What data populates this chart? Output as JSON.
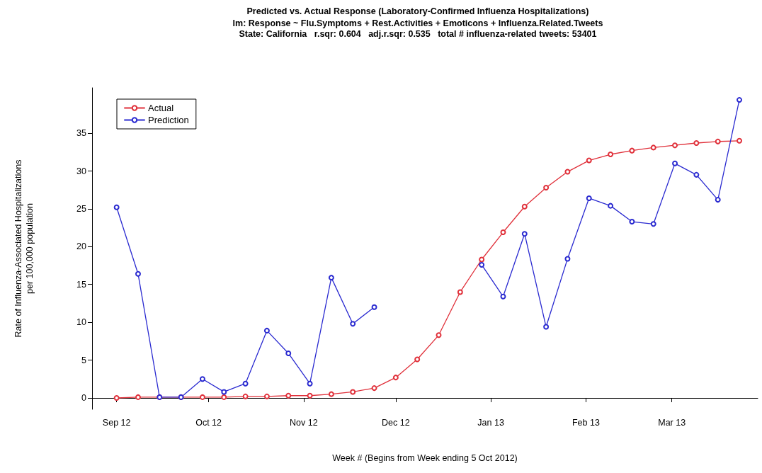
{
  "chart_data": {
    "type": "line",
    "title": "Predicted vs. Actual Response (Laboratory-Confirmed Influenza Hospitalizations)",
    "subtitle": "lm: Response ~ Flu.Symptoms + Rest.Activities + Emoticons + Influenza.Related.Tweets\nState: California   r.sqr: 0.604   adj.r.sqr: 0.535   total # influenza-related tweets: 53401",
    "xlabel": "Week # (Begins from Week ending 5 Oct 2012)",
    "ylabel": "Rate of Influenza-Associated Hospitalizations\nper 100,000 population",
    "x": [
      "2012-09-01",
      "2012-09-08",
      "2012-09-15",
      "2012-09-22",
      "2012-09-29",
      "2012-10-06",
      "2012-10-13",
      "2012-10-20",
      "2012-10-27",
      "2012-11-03",
      "2012-11-10",
      "2012-11-17",
      "2012-11-24",
      "2012-12-01",
      "2012-12-08",
      "2012-12-15",
      "2012-12-22",
      "2012-12-29",
      "2013-01-05",
      "2013-01-12",
      "2013-01-19",
      "2013-01-26",
      "2013-02-02",
      "2013-02-09",
      "2013-02-16",
      "2013-02-23",
      "2013-03-02",
      "2013-03-09",
      "2013-03-16",
      "2013-03-23"
    ],
    "series": [
      {
        "name": "Actual",
        "color": "#e0303a",
        "values": [
          0,
          0.1,
          0.1,
          0.1,
          0.1,
          0.1,
          0.2,
          0.2,
          0.3,
          0.3,
          0.5,
          0.8,
          1.3,
          2.7,
          5.1,
          8.3,
          14.0,
          18.3,
          21.9,
          25.3,
          27.8,
          29.9,
          31.4,
          32.2,
          32.7,
          33.1,
          33.4,
          33.7,
          33.9,
          34.0
        ]
      },
      {
        "name": "Prediction",
        "color": "#2a2ad0",
        "values": [
          25.2,
          16.4,
          0.1,
          0.1,
          2.5,
          0.8,
          1.9,
          8.9,
          5.9,
          1.9,
          15.9,
          9.8,
          12.0,
          null,
          null,
          null,
          null,
          17.6,
          13.4,
          21.7,
          9.4,
          18.4,
          26.4,
          25.4,
          23.3,
          23.0,
          31.0,
          29.5,
          26.2,
          39.4
        ]
      }
    ],
    "xlim": [
      "2012-08-24",
      "2013-03-29"
    ],
    "xticks": [
      {
        "value": "2012-09-01",
        "label": "Sep 12"
      },
      {
        "value": "2012-10-01",
        "label": "Oct 12"
      },
      {
        "value": "2012-11-01",
        "label": "Nov 12"
      },
      {
        "value": "2012-12-01",
        "label": "Dec 12"
      },
      {
        "value": "2013-01-01",
        "label": "Jan 13"
      },
      {
        "value": "2013-02-01",
        "label": "Feb 13"
      },
      {
        "value": "2013-03-01",
        "label": "Mar 13"
      }
    ],
    "ylim": [
      -1.5,
      41
    ],
    "yticks": [
      0,
      5,
      10,
      15,
      20,
      25,
      30,
      35
    ],
    "grid": false,
    "legend": "top left",
    "marker": "circle",
    "line_style": "solid"
  }
}
